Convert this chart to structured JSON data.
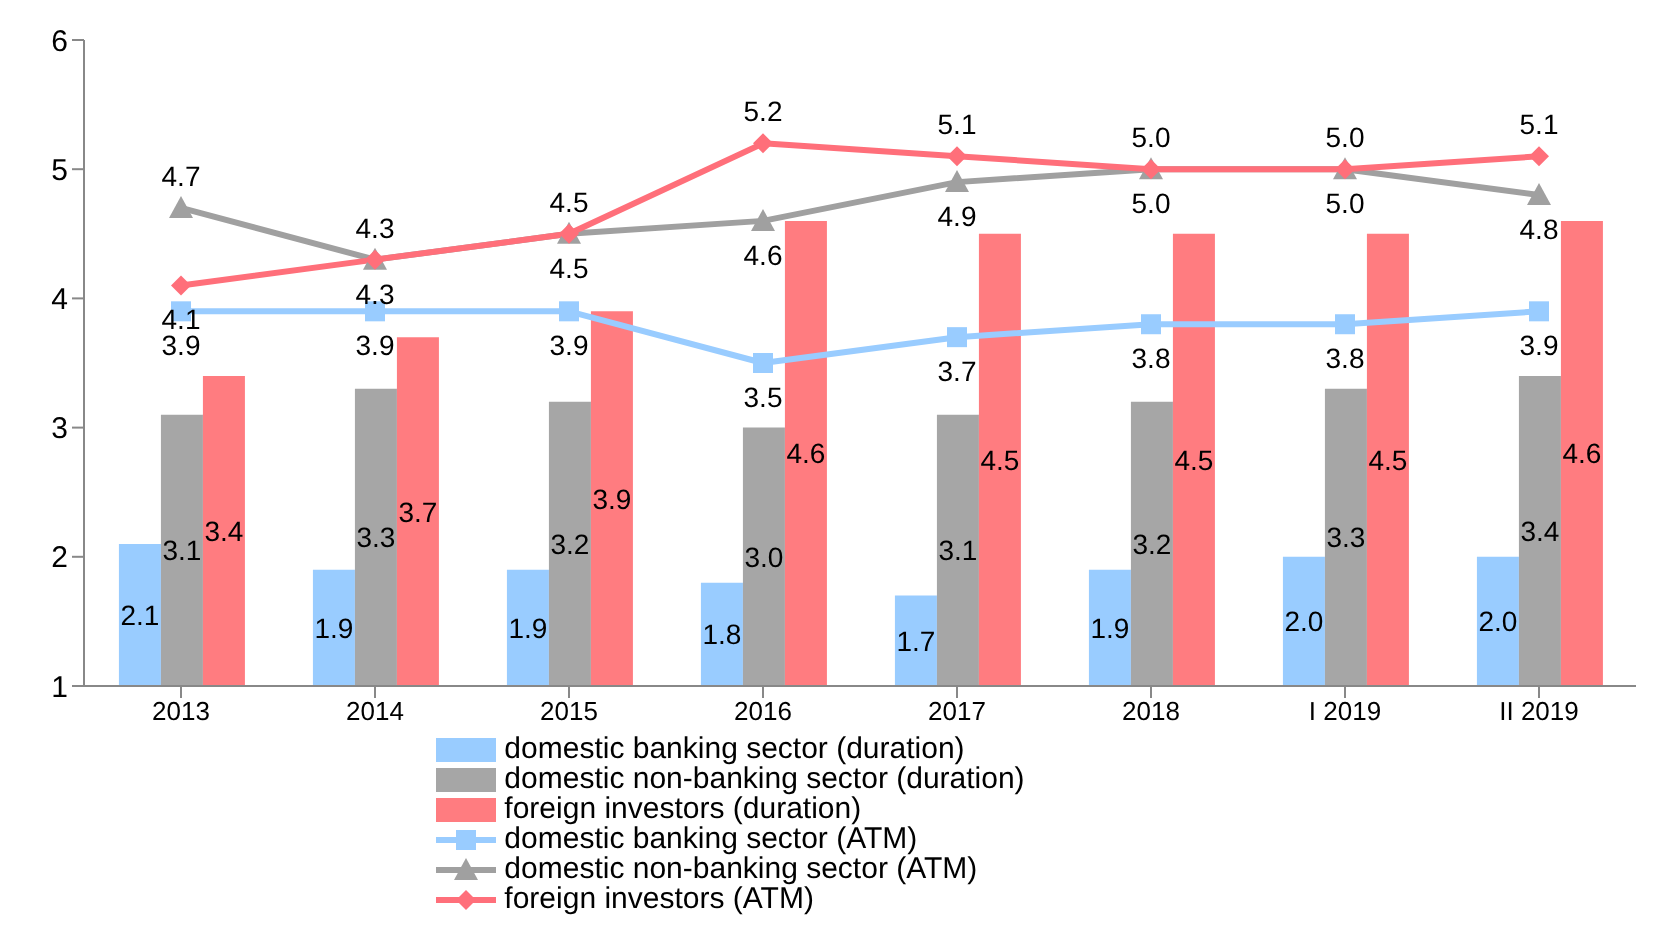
{
  "chart_data": {
    "type": "bar",
    "categories": [
      "2013",
      "2014",
      "2015",
      "2016",
      "2017",
      "2018",
      "I 2019",
      "II 2019"
    ],
    "series": [
      {
        "name": "domestic banking sector (duration)",
        "color": "#99ccff",
        "values": [
          2.1,
          1.9,
          1.9,
          1.8,
          1.7,
          1.9,
          2.0,
          2.0
        ],
        "value_labels": [
          "2.1",
          "1.9",
          "1.9",
          "1.8",
          "1.7",
          "1.9",
          "2.0",
          "2.0"
        ]
      },
      {
        "name": "domestic non-banking sector (duration)",
        "color": "#a6a6a6",
        "values": [
          3.1,
          3.3,
          3.2,
          3.0,
          3.1,
          3.2,
          3.3,
          3.4
        ],
        "value_labels": [
          "3.1",
          "3.3",
          "3.2",
          "3.0",
          "3.1",
          "3.2",
          "3.3",
          "3.4"
        ]
      },
      {
        "name": "foreign investors (duration)",
        "color": "#ff7c80",
        "values": [
          3.4,
          3.7,
          3.9,
          4.6,
          4.5,
          4.5,
          4.5,
          4.6
        ],
        "value_labels": [
          "3.4",
          "3.7",
          "3.9",
          "4.6",
          "4.5",
          "4.5",
          "4.5",
          "4.6"
        ]
      },
      {
        "name": "domestic banking sector (ATM)",
        "type": "line",
        "color": "#99ccff",
        "marker": "square",
        "values": [
          3.9,
          3.9,
          3.9,
          3.5,
          3.7,
          3.8,
          3.8,
          3.9
        ],
        "value_labels": [
          "3.9",
          "3.9",
          "3.9",
          "3.5",
          "3.7",
          "3.8",
          "3.8",
          "3.9"
        ]
      },
      {
        "name": "domestic non-banking sector (ATM)",
        "type": "line",
        "color": "#a0a0a0",
        "marker": "triangle",
        "values": [
          4.7,
          4.3,
          4.5,
          4.6,
          4.9,
          5.0,
          5.0,
          4.8
        ],
        "value_labels": [
          "4.7",
          "4.3",
          "4.5",
          "4.6",
          "4.9",
          "5.0",
          "5.0",
          "4.8"
        ]
      },
      {
        "name": "foreign investors (ATM)",
        "type": "line",
        "color": "#ff6f7a",
        "marker": "diamond",
        "values": [
          4.1,
          4.3,
          4.5,
          5.2,
          5.1,
          5.0,
          5.0,
          5.1
        ],
        "value_labels": [
          "4.1",
          "4.3",
          "4.5",
          "5.2",
          "5.1",
          "5.0",
          "5.0",
          "5.1"
        ]
      }
    ],
    "ylim": [
      1,
      6
    ],
    "yticks": [
      1,
      2,
      3,
      4,
      5,
      6
    ],
    "legend": "bottom",
    "line_style": "solid"
  }
}
